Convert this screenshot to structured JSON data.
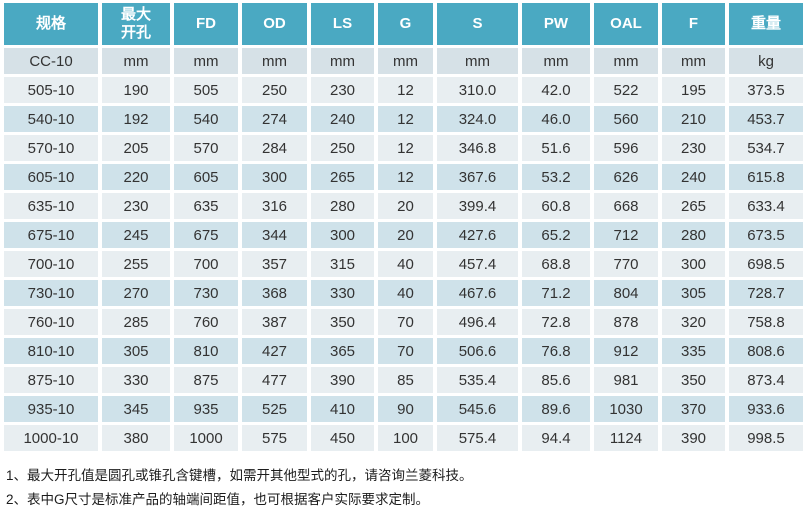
{
  "table": {
    "columns": [
      "规格",
      "最大开孔",
      "FD",
      "OD",
      "LS",
      "G",
      "S",
      "PW",
      "OAL",
      "F",
      "重量"
    ],
    "unit_row": [
      "CC-10",
      "mm",
      "mm",
      "mm",
      "mm",
      "mm",
      "mm",
      "mm",
      "mm",
      "mm",
      "kg"
    ],
    "rows": [
      [
        "505-10",
        "190",
        "505",
        "250",
        "230",
        "12",
        "310.0",
        "42.0",
        "522",
        "195",
        "373.5"
      ],
      [
        "540-10",
        "192",
        "540",
        "274",
        "240",
        "12",
        "324.0",
        "46.0",
        "560",
        "210",
        "453.7"
      ],
      [
        "570-10",
        "205",
        "570",
        "284",
        "250",
        "12",
        "346.8",
        "51.6",
        "596",
        "230",
        "534.7"
      ],
      [
        "605-10",
        "220",
        "605",
        "300",
        "265",
        "12",
        "367.6",
        "53.2",
        "626",
        "240",
        "615.8"
      ],
      [
        "635-10",
        "230",
        "635",
        "316",
        "280",
        "20",
        "399.4",
        "60.8",
        "668",
        "265",
        "633.4"
      ],
      [
        "675-10",
        "245",
        "675",
        "344",
        "300",
        "20",
        "427.6",
        "65.2",
        "712",
        "280",
        "673.5"
      ],
      [
        "700-10",
        "255",
        "700",
        "357",
        "315",
        "40",
        "457.4",
        "68.8",
        "770",
        "300",
        "698.5"
      ],
      [
        "730-10",
        "270",
        "730",
        "368",
        "330",
        "40",
        "467.6",
        "71.2",
        "804",
        "305",
        "728.7"
      ],
      [
        "760-10",
        "285",
        "760",
        "387",
        "350",
        "70",
        "496.4",
        "72.8",
        "878",
        "320",
        "758.8"
      ],
      [
        "810-10",
        "305",
        "810",
        "427",
        "365",
        "70",
        "506.6",
        "76.8",
        "912",
        "335",
        "808.6"
      ],
      [
        "875-10",
        "330",
        "875",
        "477",
        "390",
        "85",
        "535.4",
        "85.6",
        "981",
        "350",
        "873.4"
      ],
      [
        "935-10",
        "345",
        "935",
        "525",
        "410",
        "90",
        "545.6",
        "89.6",
        "1030",
        "370",
        "933.6"
      ],
      [
        "1000-10",
        "380",
        "1000",
        "575",
        "450",
        "100",
        "575.4",
        "94.4",
        "1124",
        "390",
        "998.5"
      ]
    ]
  },
  "notes": [
    "1、最大开孔值是圆孔或锥孔含键槽，如需开其他型式的孔，请咨询兰菱科技。",
    "2、表中G尺寸是标准产品的轴端间距值，也可根据客户实际要求定制。"
  ],
  "colors": {
    "header_bg": "#4aa9c2",
    "header_text": "#ffffff",
    "row_light": "#e8eef1",
    "row_dark": "#cfe2ea",
    "unit_row_bg": "#d6e1e7",
    "cell_text": "#333333"
  }
}
